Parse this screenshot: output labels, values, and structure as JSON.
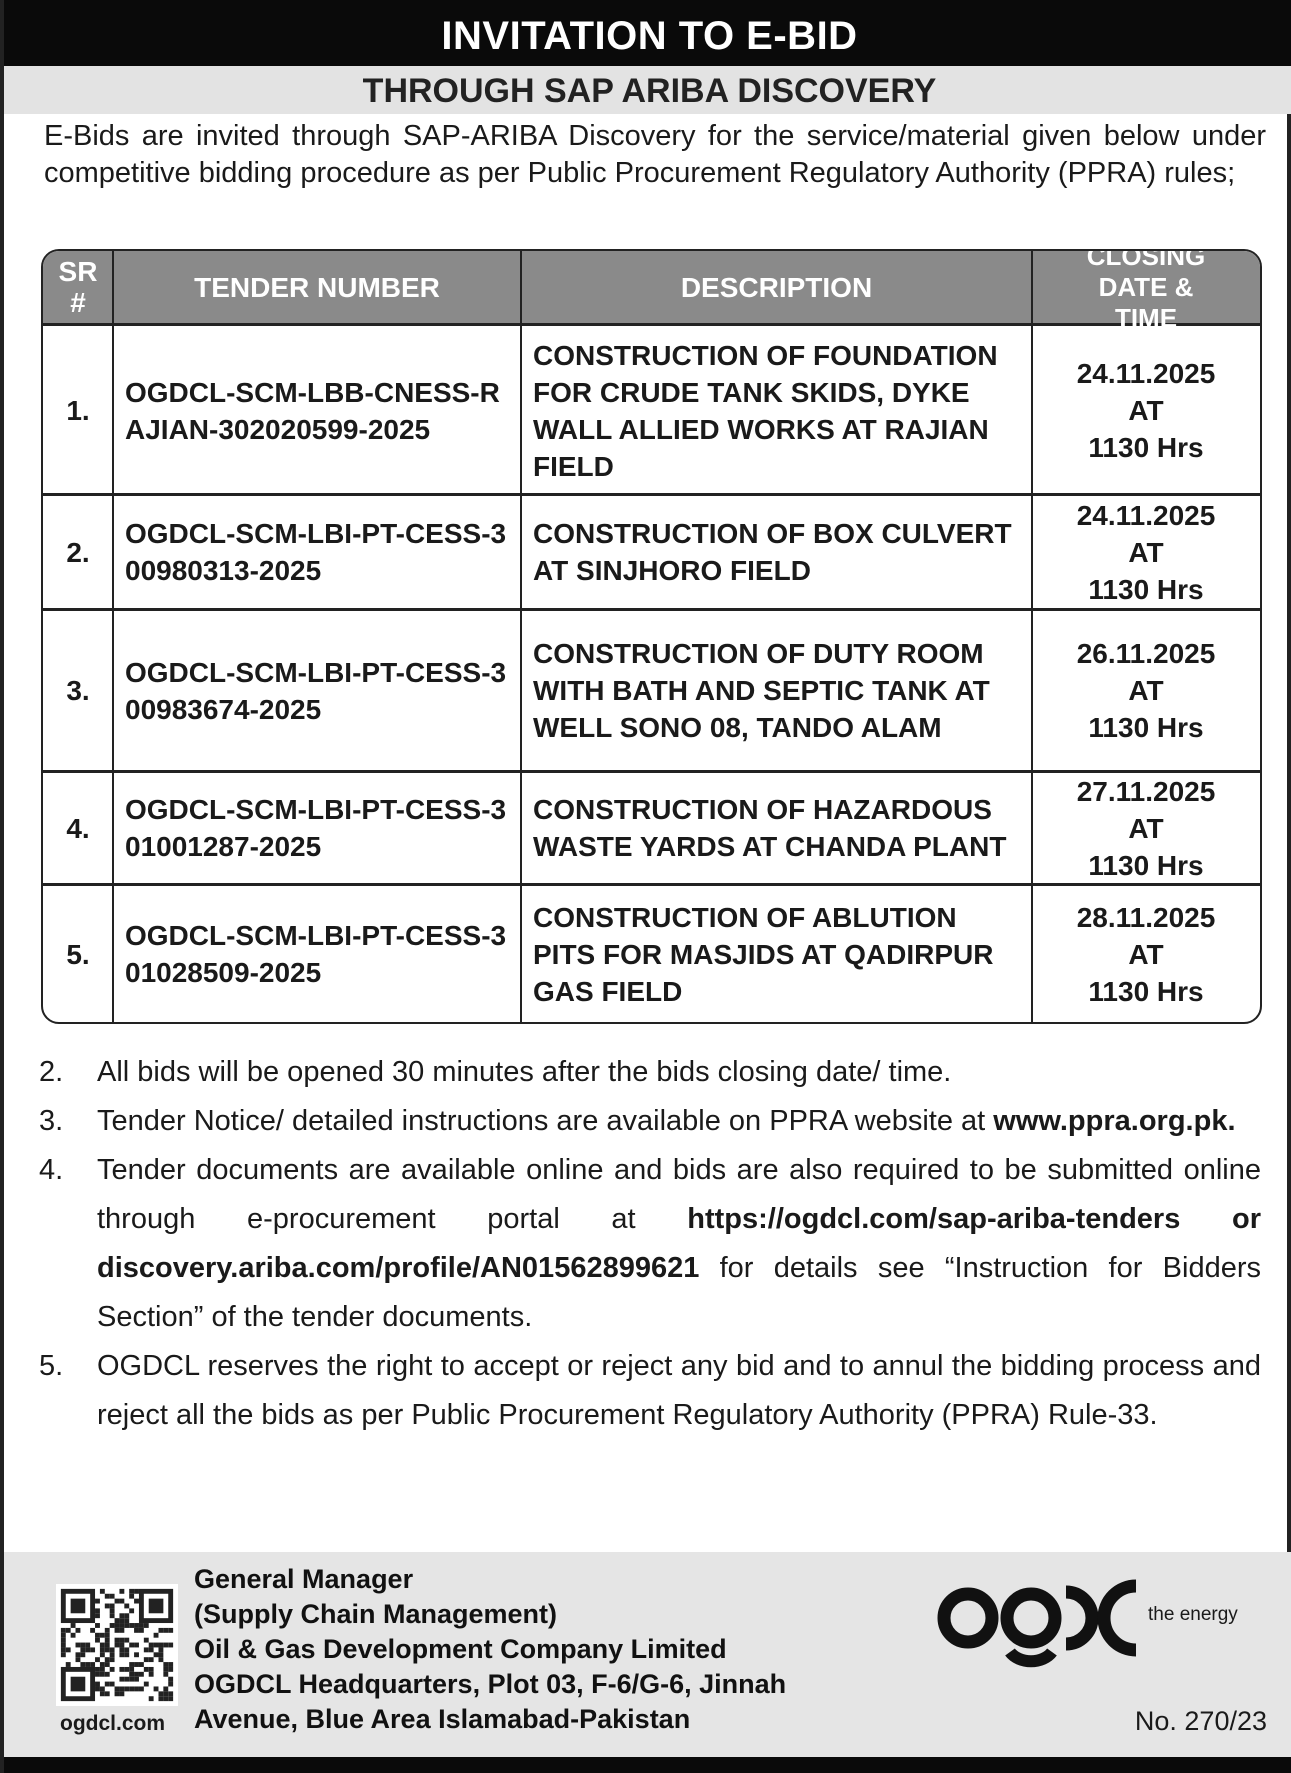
{
  "header": {
    "title": "INVITATION TO E-BID",
    "subtitle": "THROUGH SAP ARIBA DISCOVERY"
  },
  "intro": "E-Bids are invited through SAP-ARIBA Discovery for the service/material given below under competitive bidding procedure as per Public Procurement Regulatory Authority (PPRA) rules;",
  "table": {
    "columns": [
      "SR #",
      "TENDER NUMBER",
      "DESCRIPTION",
      "CLOSING DATE & TIME"
    ],
    "rows": [
      {
        "sr": "1.",
        "tender": "OGDCL-SCM-LBB-CNESS-RAJIAN-302020599-2025",
        "description": "CONSTRUCTION OF FOUNDATION FOR CRUDE TANK SKIDS, DYKE WALL ALLIED WORKS AT RAJIAN FIELD",
        "date": "24.11.2025",
        "at": "AT",
        "time": "1130 Hrs"
      },
      {
        "sr": "2.",
        "tender": "OGDCL-SCM-LBI-PT-CESS-300980313-2025",
        "description": "CONSTRUCTION OF BOX CULVERT AT SINJHORO FIELD",
        "date": "24.11.2025",
        "at": "AT",
        "time": "1130 Hrs"
      },
      {
        "sr": "3.",
        "tender": "OGDCL-SCM-LBI-PT-CESS-300983674-2025",
        "description": "CONSTRUCTION OF DUTY ROOM WITH BATH AND SEPTIC TANK AT WELL SONO 08, TANDO ALAM",
        "date": "26.11.2025",
        "at": "AT",
        "time": "1130 Hrs"
      },
      {
        "sr": "4.",
        "tender": "OGDCL-SCM-LBI-PT-CESS-301001287-2025",
        "description": "CONSTRUCTION OF HAZARDOUS WASTE YARDS AT CHANDA PLANT",
        "date": "27.11.2025",
        "at": "AT",
        "time": "1130 Hrs"
      },
      {
        "sr": "5.",
        "tender": "OGDCL-SCM-LBI-PT-CESS-301028509-2025",
        "description": "CONSTRUCTION OF ABLUTION PITS FOR MASJIDS AT QADIRPUR GAS FIELD",
        "date": "28.11.2025",
        "at": "AT",
        "time": "1130 Hrs"
      }
    ]
  },
  "notes": [
    {
      "n": "2.",
      "text": "All bids will be opened 30 minutes after the bids closing date/ time."
    },
    {
      "n": "3.",
      "text": "Tender Notice/ detailed instructions are available on PPRA website at ",
      "link": "www.ppra.org.pk."
    },
    {
      "n": "4.",
      "text": "Tender documents are available online and bids are also required to be submitted online through e-procurement portal at ",
      "link": "https://ogdcl.com/sap-ariba-tenders or discovery.ariba.com/profile/AN01562899621",
      "after": "  for details see “Instruction for Bidders Section” of the tender documents."
    },
    {
      "n": "5.",
      "text": "OGDCL reserves the right to accept or reject any bid and to annul the bidding process and reject all the bids as per Public Procurement Regulatory Authority (PPRA) Rule-33."
    }
  ],
  "footer": {
    "lines": [
      "General Manager",
      "(Supply Chain Management)",
      "Oil & Gas Development Company Limited",
      "OGDCL Headquarters, Plot 03, F-6/G-6, Jinnah",
      "Avenue, Blue Area Islamabad-Pakistan"
    ],
    "website": "ogdcl.com",
    "logo_text": "ogdc",
    "tagline": "the energy",
    "ref": "No. 270/23"
  }
}
